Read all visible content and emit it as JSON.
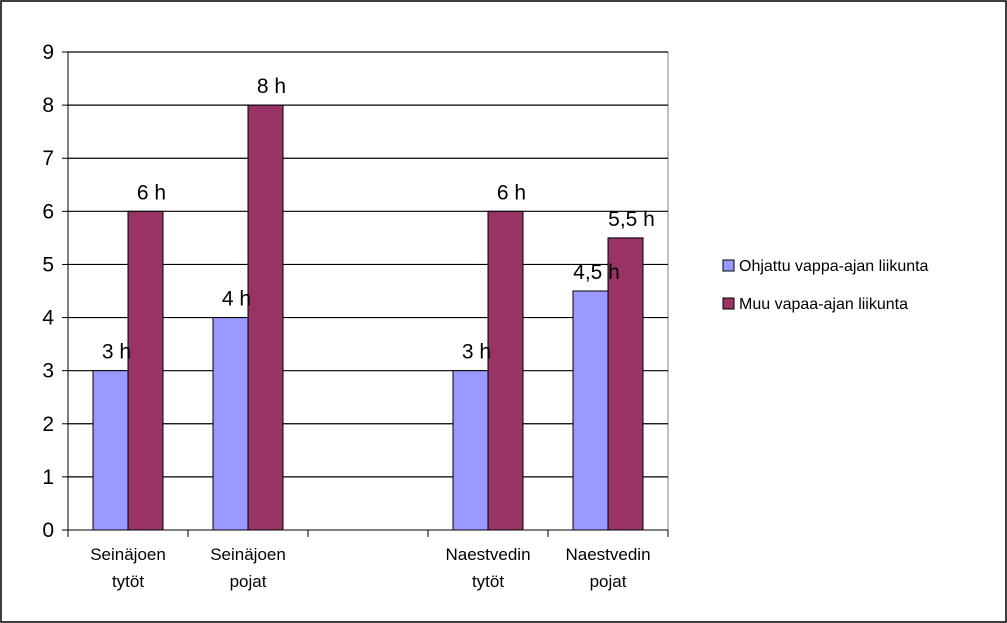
{
  "chart_data": {
    "type": "bar",
    "categories": [
      [
        "Seinäjoen",
        "tytöt"
      ],
      [
        "Seinäjoen",
        "pojat"
      ],
      [
        "",
        ""
      ],
      [
        "Naestvedin",
        "tytöt"
      ],
      [
        "Naestvedin",
        "pojat"
      ]
    ],
    "series": [
      {
        "name": "Ohjattu vappa-ajan liikunta",
        "color": "#9999FF",
        "values": [
          3,
          4,
          null,
          3,
          4.5
        ],
        "labels": [
          "3 h",
          "4 h",
          "",
          "3 h",
          "4,5 h"
        ]
      },
      {
        "name": "Muu vapaa-ajan liikunta",
        "color": "#993366",
        "values": [
          6,
          8,
          null,
          6,
          5.5
        ],
        "labels": [
          "6 h",
          "8 h",
          "",
          "6 h",
          "5,5 h"
        ]
      }
    ],
    "y_ticks": [
      "0",
      "1",
      "2",
      "3",
      "4",
      "5",
      "6",
      "7",
      "8",
      "9"
    ],
    "ylim": [
      0,
      9
    ],
    "grid": true,
    "legend_position": "right"
  }
}
